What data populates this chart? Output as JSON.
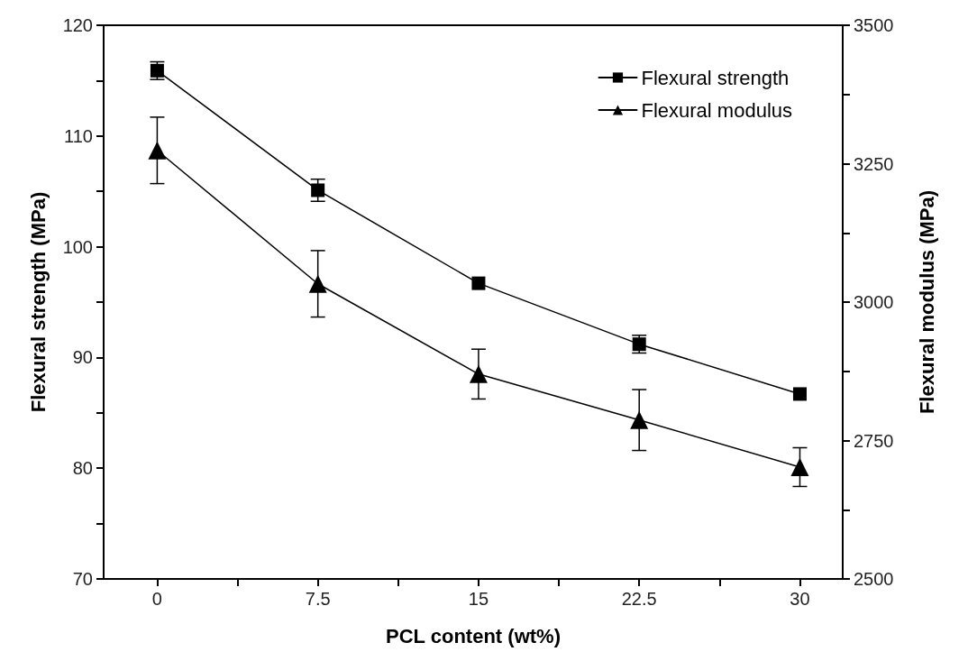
{
  "chart_data": {
    "type": "line",
    "xlabel": "PCL content (wt%)",
    "ylabel": "Flexural strength (MPa)",
    "y2label": "Flexural modulus (MPa)",
    "x": [
      0,
      7.5,
      15,
      22.5,
      30
    ],
    "series": [
      {
        "name": "Flexural strength",
        "color": "#000000",
        "marker": "square",
        "values": [
          115.9,
          105.1,
          96.7,
          91.2,
          86.7
        ],
        "errors": [
          0.8,
          1.0,
          null,
          0.8,
          null
        ]
      },
      {
        "name": "Flexural modulus",
        "color": "#000000",
        "marker": "triangle",
        "axis": "y2",
        "values": [
          3274,
          3033,
          2870,
          2787,
          2702
        ],
        "errors": [
          60,
          60,
          45,
          55,
          35
        ]
      }
    ],
    "xlim": [
      -2.5,
      32
    ],
    "xticks": [
      0,
      {
        "value": 3.75,
        "label": null
      },
      7.5,
      {
        "value": 11.25,
        "label": null
      },
      15,
      {
        "value": 18.75,
        "label": null
      },
      22.5,
      {
        "value": 26.25,
        "label": null
      },
      30
    ],
    "ylim": [
      70,
      120
    ],
    "yticks": [
      70,
      {
        "value": 75,
        "label": null
      },
      80,
      {
        "value": 85,
        "label": null
      },
      90,
      {
        "value": 95,
        "label": null
      },
      100,
      {
        "value": 105,
        "label": null
      },
      110,
      {
        "value": 115,
        "label": null
      },
      120
    ],
    "y2lim": [
      2500,
      3500
    ],
    "y2ticks": [
      2500,
      {
        "value": 2625,
        "label": null
      },
      2750,
      {
        "value": 2875,
        "label": null
      },
      3000,
      {
        "value": 3125,
        "label": null
      },
      3250,
      {
        "value": 3375,
        "label": null
      },
      3500
    ],
    "grid": false,
    "legend": "top right"
  }
}
